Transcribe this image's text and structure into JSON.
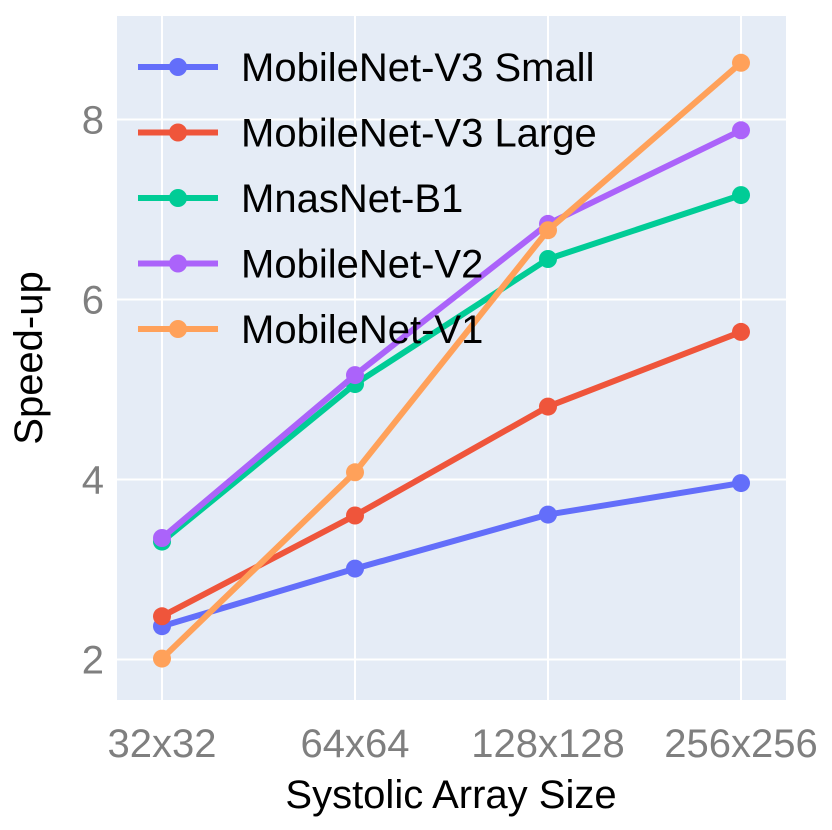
{
  "chart_data": {
    "type": "line",
    "title": "",
    "xlabel": "Systolic Array Size",
    "ylabel": "Speed-up",
    "categories": [
      "32x32",
      "64x64",
      "128x128",
      "256x256"
    ],
    "ylim": [
      1.55,
      9.15
    ],
    "yticks": [
      2,
      4,
      6,
      8
    ],
    "grid": true,
    "background_color": "#e5ecf6",
    "legend_position": "top-left",
    "series": [
      {
        "name": "MobileNet-V3 Small",
        "color": "#636efa",
        "values": [
          2.37,
          3.01,
          3.61,
          3.96
        ]
      },
      {
        "name": "MobileNet-V3 Large",
        "color": "#ef553b",
        "values": [
          2.48,
          3.6,
          4.81,
          5.64
        ]
      },
      {
        "name": "MnasNet-B1",
        "color": "#00cc96",
        "values": [
          3.31,
          5.06,
          6.45,
          7.16
        ]
      },
      {
        "name": "MobileNet-V2",
        "color": "#ab63fa",
        "values": [
          3.35,
          5.16,
          6.84,
          7.88
        ]
      },
      {
        "name": "MobileNet-V1",
        "color": "#ffa15a",
        "values": [
          2.01,
          4.08,
          6.77,
          8.63
        ]
      }
    ]
  }
}
